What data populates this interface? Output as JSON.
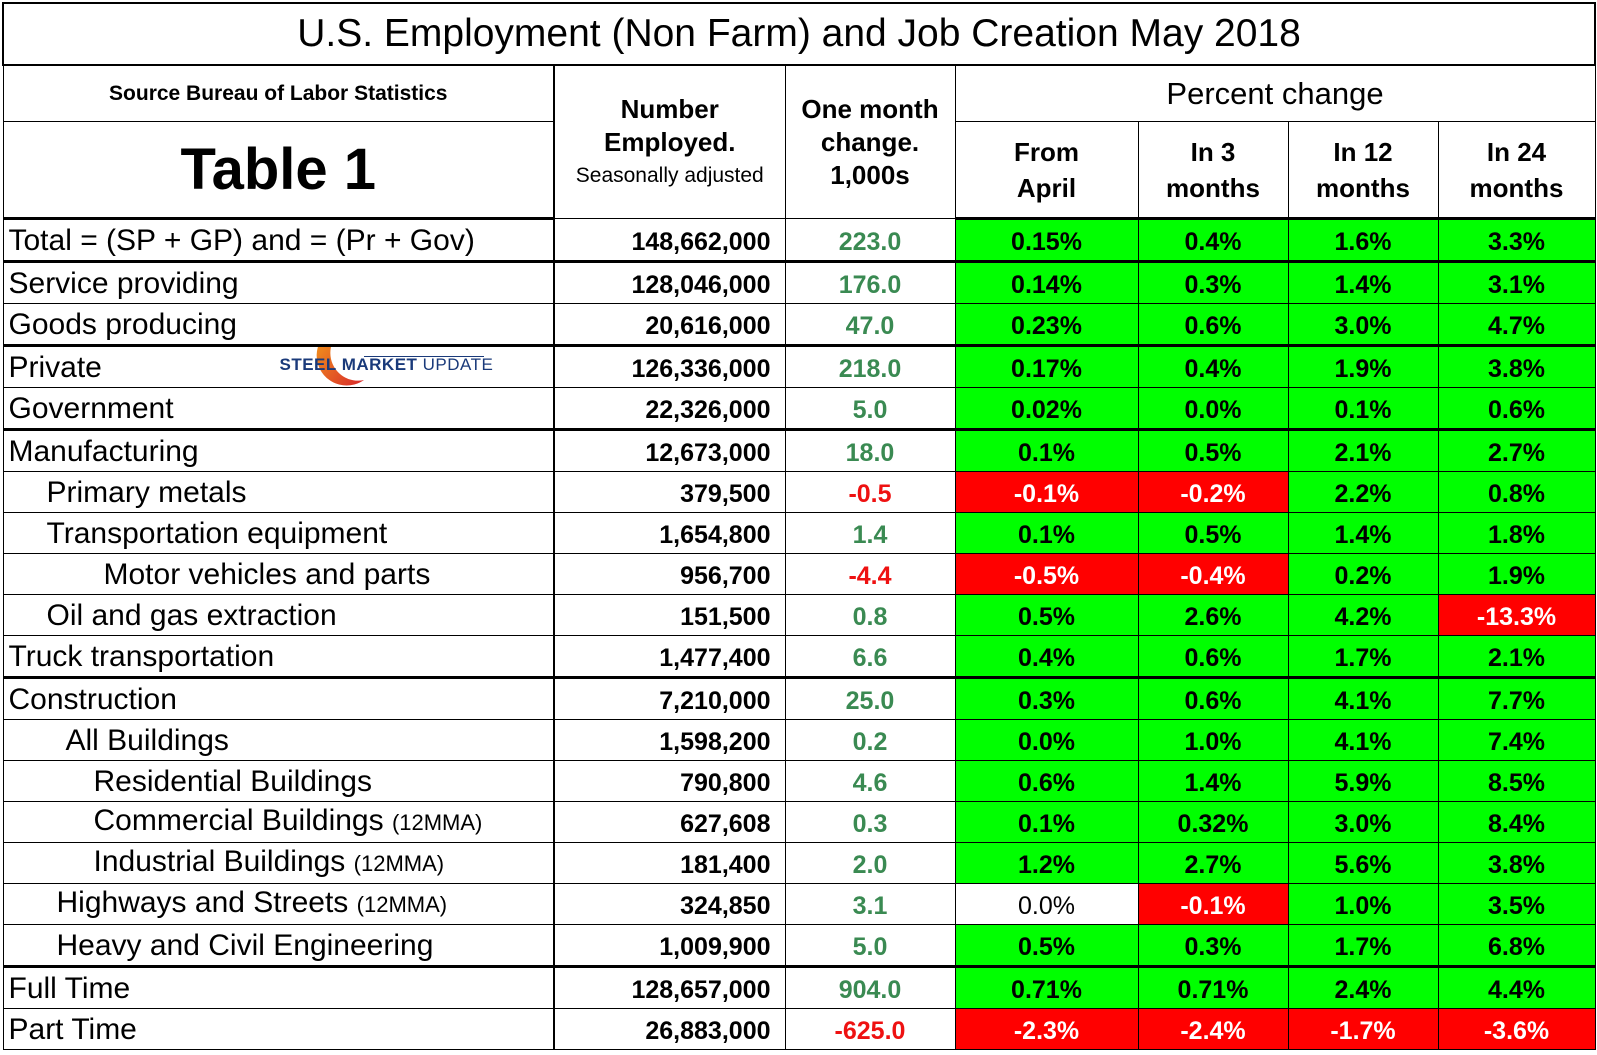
{
  "title": "U.S. Employment (Non Farm) and Job Creation May 2018",
  "header": {
    "source": "Source Bureau of Labor Statistics",
    "table_label": "Table 1",
    "number_employed_line1": "Number",
    "number_employed_line2": "Employed.",
    "number_employed_line3": "Seasonally adjusted",
    "one_month_line1": "One month",
    "one_month_line2": "change.",
    "one_month_line3": "1,000s",
    "percent_change": "Percent change",
    "from_april_line1": "From",
    "from_april_line2": "April",
    "in3_line1": "In 3",
    "in3_line2": "months",
    "in12_line1": "In 12",
    "in12_line2": "months",
    "in24_line1": "In 24",
    "in24_line2": "months"
  },
  "logo": {
    "text_bold": "STEEL MARKET",
    "text_light": "UPDATE"
  },
  "colors": {
    "positive_fill": "#00ff00",
    "negative_fill": "#ff0000",
    "positive_text": "#3a8a52",
    "negative_text": "#ee1111"
  },
  "rows": [
    {
      "label": "Total = (SP + GP) and = (Pr + Gov)",
      "mma": "",
      "number": "148,662,000",
      "change": "223.0",
      "from_april": "0.15%",
      "in3": "0.4%",
      "in12": "1.6%",
      "in24": "3.3%"
    },
    {
      "label": "Service providing",
      "mma": "",
      "number": "128,046,000",
      "change": "176.0",
      "from_april": "0.14%",
      "in3": "0.3%",
      "in12": "1.4%",
      "in24": "3.1%"
    },
    {
      "label": "Goods producing",
      "mma": "",
      "number": "20,616,000",
      "change": "47.0",
      "from_april": "0.23%",
      "in3": "0.6%",
      "in12": "3.0%",
      "in24": "4.7%"
    },
    {
      "label": "Private",
      "mma": "",
      "number": "126,336,000",
      "change": "218.0",
      "from_april": "0.17%",
      "in3": "0.4%",
      "in12": "1.9%",
      "in24": "3.8%"
    },
    {
      "label": "Government",
      "mma": "",
      "number": "22,326,000",
      "change": "5.0",
      "from_april": "0.02%",
      "in3": "0.0%",
      "in12": "0.1%",
      "in24": "0.6%"
    },
    {
      "label": "Manufacturing",
      "mma": "",
      "number": "12,673,000",
      "change": "18.0",
      "from_april": "0.1%",
      "in3": "0.5%",
      "in12": "2.1%",
      "in24": "2.7%"
    },
    {
      "label": "Primary metals",
      "mma": "",
      "number": "379,500",
      "change": "-0.5",
      "from_april": "-0.1%",
      "in3": "-0.2%",
      "in12": "2.2%",
      "in24": "0.8%"
    },
    {
      "label": "Transportation equipment",
      "mma": "",
      "number": "1,654,800",
      "change": "1.4",
      "from_april": "0.1%",
      "in3": "0.5%",
      "in12": "1.4%",
      "in24": "1.8%"
    },
    {
      "label": "Motor vehicles and parts",
      "mma": "",
      "number": "956,700",
      "change": "-4.4",
      "from_april": "-0.5%",
      "in3": "-0.4%",
      "in12": "0.2%",
      "in24": "1.9%"
    },
    {
      "label": "Oil and gas extraction",
      "mma": "",
      "number": "151,500",
      "change": "0.8",
      "from_april": "0.5%",
      "in3": "2.6%",
      "in12": "4.2%",
      "in24": "-13.3%"
    },
    {
      "label": "Truck transportation",
      "mma": "",
      "number": "1,477,400",
      "change": "6.6",
      "from_april": "0.4%",
      "in3": "0.6%",
      "in12": "1.7%",
      "in24": "2.1%"
    },
    {
      "label": "Construction",
      "mma": "",
      "number": "7,210,000",
      "change": "25.0",
      "from_april": "0.3%",
      "in3": "0.6%",
      "in12": "4.1%",
      "in24": "7.7%"
    },
    {
      "label": "All Buildings",
      "mma": "",
      "number": "1,598,200",
      "change": "0.2",
      "from_april": "0.0%",
      "in3": "1.0%",
      "in12": "4.1%",
      "in24": "7.4%"
    },
    {
      "label": "Residential Buildings",
      "mma": "",
      "number": "790,800",
      "change": "4.6",
      "from_april": "0.6%",
      "in3": "1.4%",
      "in12": "5.9%",
      "in24": "8.5%"
    },
    {
      "label": "Commercial Buildings ",
      "mma": "(12MMA)",
      "number": "627,608",
      "change": "0.3",
      "from_april": "0.1%",
      "in3": "0.32%",
      "in12": "3.0%",
      "in24": "8.4%"
    },
    {
      "label": "Industrial Buildings ",
      "mma": "(12MMA)",
      "number": "181,400",
      "change": "2.0",
      "from_april": "1.2%",
      "in3": "2.7%",
      "in12": "5.6%",
      "in24": "3.8%"
    },
    {
      "label": "Highways and Streets ",
      "mma": "(12MMA)",
      "number": "324,850",
      "change": "3.1",
      "from_april": "0.0%",
      "in3": "-0.1%",
      "in12": "1.0%",
      "in24": "3.5%"
    },
    {
      "label": "Heavy and Civil Engineering",
      "mma": "",
      "number": "1,009,900",
      "change": "5.0",
      "from_april": "0.5%",
      "in3": "0.3%",
      "in12": "1.7%",
      "in24": "6.8%"
    },
    {
      "label": "Full Time",
      "mma": "",
      "number": "128,657,000",
      "change": "904.0",
      "from_april": "0.71%",
      "in3": "0.71%",
      "in12": "2.4%",
      "in24": "4.4%"
    },
    {
      "label": "Part Time",
      "mma": "",
      "number": "26,883,000",
      "change": "-625.0",
      "from_april": "-2.3%",
      "in3": "-2.4%",
      "in12": "-1.7%",
      "in24": "-3.6%"
    }
  ]
}
